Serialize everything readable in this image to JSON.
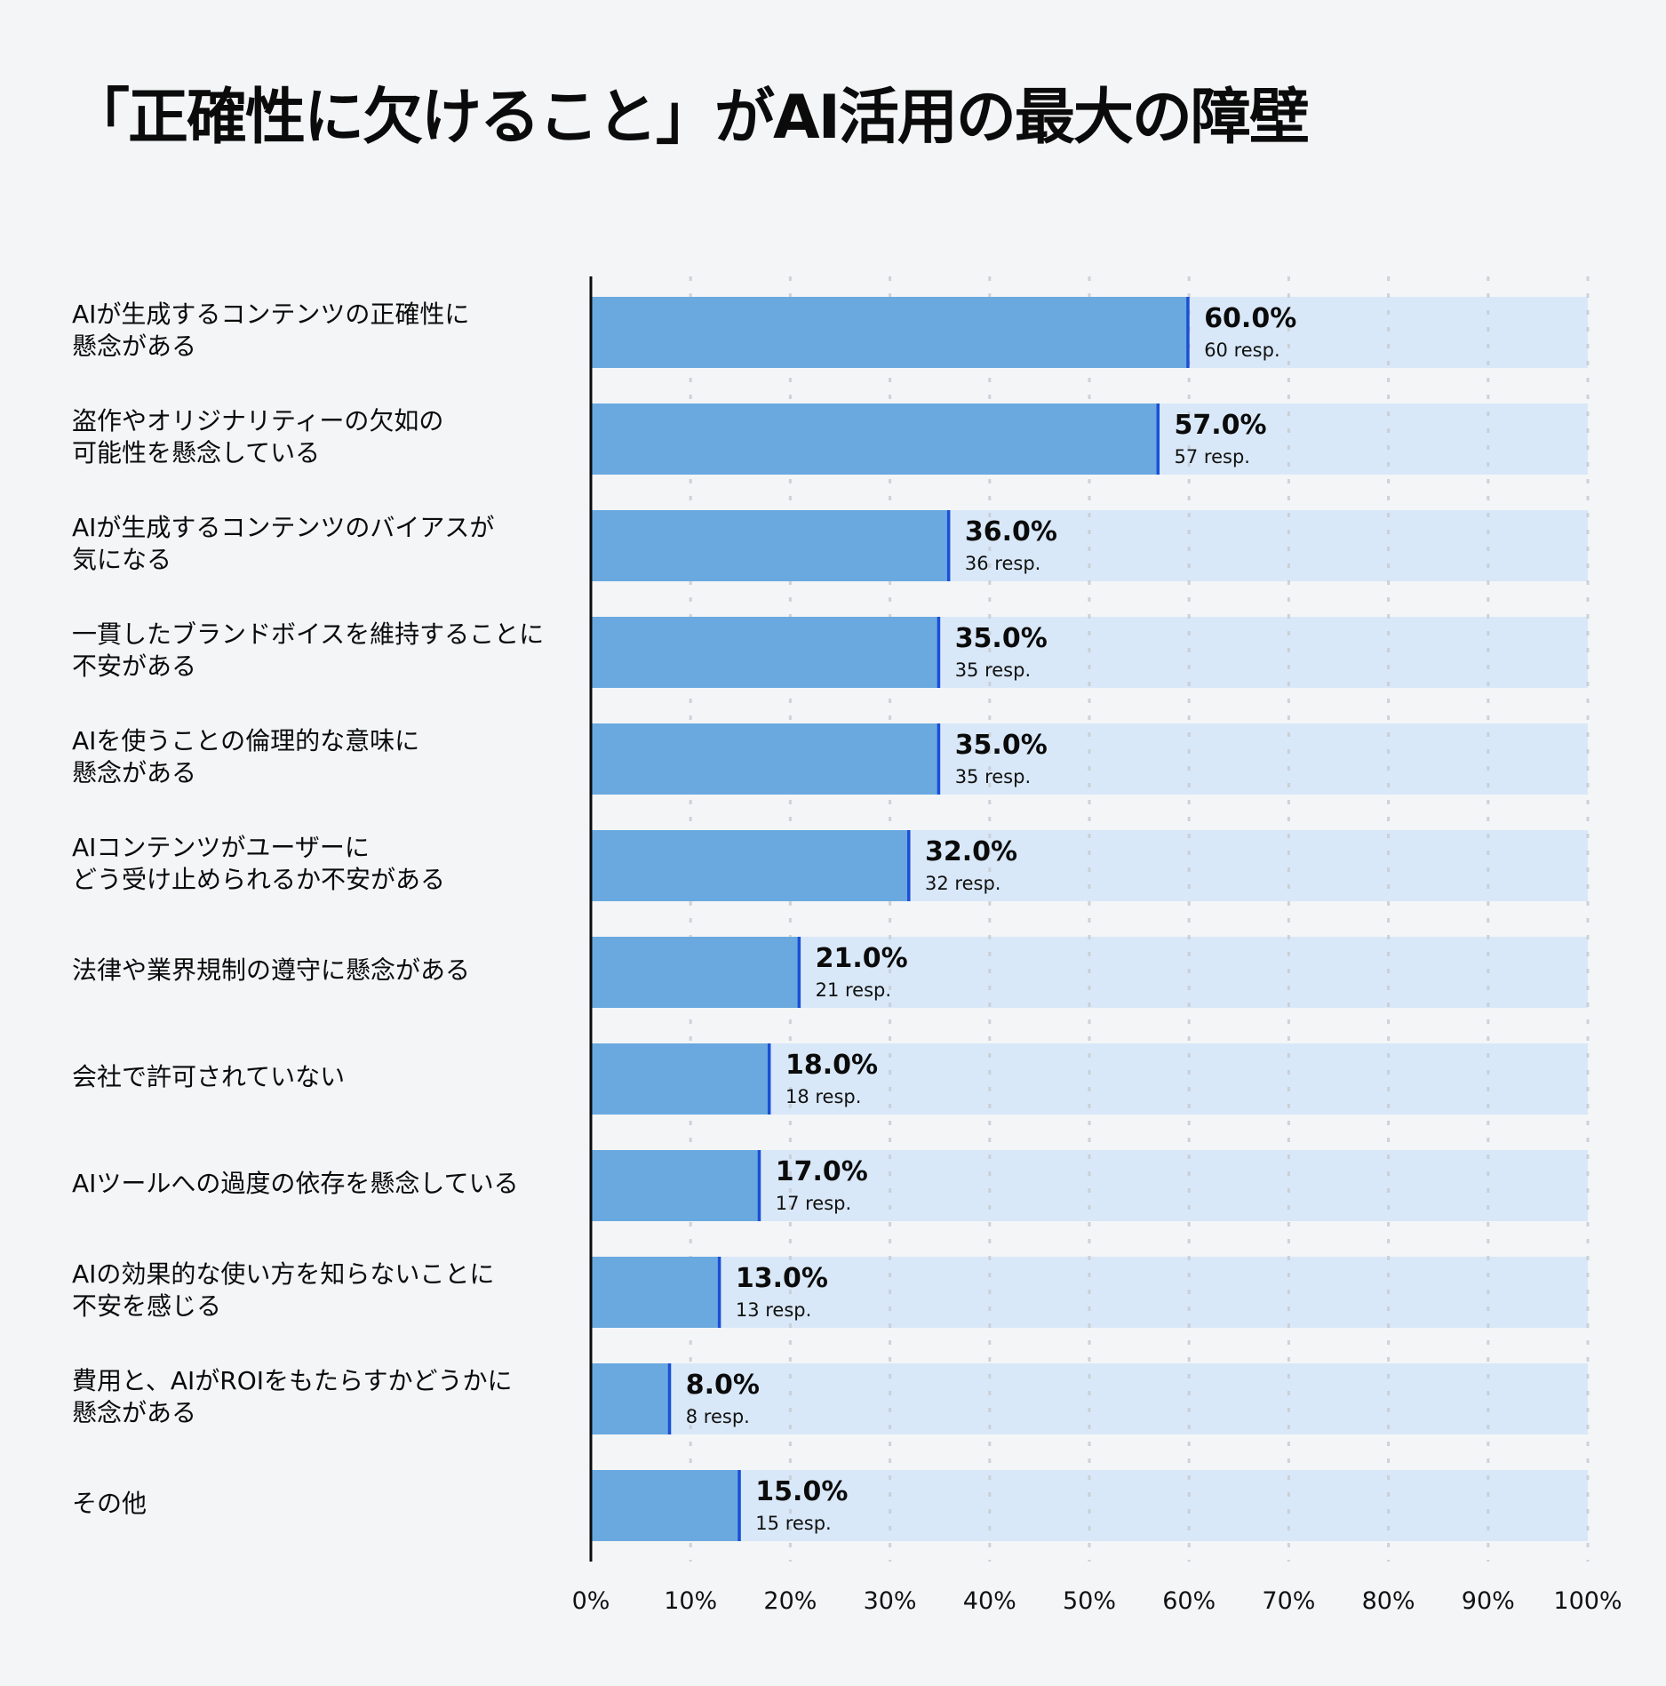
{
  "title": "「正確性に欠けること」がAI活用の最大の障壁",
  "chart_data": {
    "type": "bar",
    "orientation": "horizontal",
    "title": "「正確性に欠けること」がAI活用の最大の障壁",
    "xlim": [
      0,
      100
    ],
    "x_ticks": [
      "0%",
      "10%",
      "20%",
      "30%",
      "40%",
      "50%",
      "60%",
      "70%",
      "80%",
      "90%",
      "100%"
    ],
    "grid": "vertical dotted",
    "categories": [
      "AIが生成するコンテンツの正確性に\n懸念がある",
      "盗作やオリジナリティーの欠如の\n可能性を懸念している",
      "AIが生成するコンテンツのバイアスが\n気になる",
      "一貫したブランドボイスを維持することに\n不安がある",
      "AIを使うことの倫理的な意味に\n懸念がある",
      "AIコンテンツがユーザーに\nどう受け止められるか不安がある",
      "法律や業界規制の遵守に懸念がある",
      "会社で許可されていない",
      "AIツールへの過度の依存を懸念している",
      "AIの効果的な使い方を知らないことに\n不安を感じる",
      "費用と、AIがROIをもたらすかどうかに\n懸念がある",
      "その他"
    ],
    "values": [
      60,
      57,
      36,
      35,
      35,
      32,
      21,
      18,
      17,
      13,
      8,
      15
    ],
    "value_labels": [
      "60.0%",
      "57.0%",
      "36.0%",
      "35.0%",
      "35.0%",
      "32.0%",
      "21.0%",
      "18.0%",
      "17.0%",
      "13.0%",
      "8.0%",
      "15.0%"
    ],
    "resp_labels": [
      "60 resp.",
      "57 resp.",
      "36 resp.",
      "35 resp.",
      "35 resp.",
      "32 resp.",
      "21 resp.",
      "18 resp.",
      "17 resp.",
      "13 resp.",
      "8 resp.",
      "15 resp."
    ],
    "colors": {
      "bar": "#6aa9e0",
      "track": "#d9e8f8",
      "marker": "#1a4fd6",
      "axis": "#0b0b0b",
      "grid": "#c4c9d0",
      "background": "#f3f5f7"
    }
  }
}
